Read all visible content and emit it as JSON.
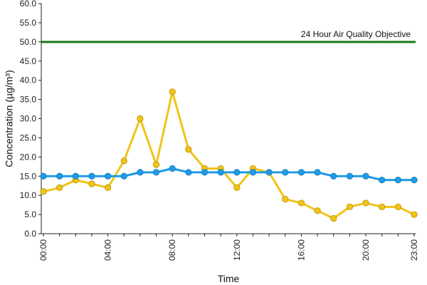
{
  "chart_data": {
    "type": "line",
    "title": "",
    "xlabel": "Time",
    "ylabel": "Concentration (µg/m³)",
    "ylim": [
      0,
      60
    ],
    "ytick_step": 5,
    "ytick_labels": [
      "0.0",
      "5.0",
      "10.0",
      "15.0",
      "20.0",
      "25.0",
      "30.0",
      "35.0",
      "40.0",
      "45.0",
      "50.0",
      "55.0",
      "60.0"
    ],
    "x": [
      "00:00",
      "01:00",
      "02:00",
      "03:00",
      "04:00",
      "05:00",
      "06:00",
      "07:00",
      "08:00",
      "09:00",
      "10:00",
      "11:00",
      "12:00",
      "13:00",
      "14:00",
      "15:00",
      "16:00",
      "17:00",
      "18:00",
      "19:00",
      "20:00",
      "21:00",
      "22:00",
      "23:00"
    ],
    "xtick_labels": [
      "00:00",
      "04:00",
      "08:00",
      "12:00",
      "16:00",
      "20:00",
      "23:00"
    ],
    "grid": false,
    "legend": "none",
    "series": [
      {
        "color": "#f0c419",
        "values": [
          11,
          12,
          14,
          13,
          12,
          19,
          30,
          18,
          37,
          22,
          17,
          17,
          12,
          17,
          16,
          9,
          8,
          6,
          4,
          7,
          8,
          7,
          7,
          5
        ]
      },
      {
        "color": "#1f9be8",
        "values": [
          15,
          15,
          15,
          15,
          15,
          15,
          16,
          16,
          17,
          16,
          16,
          16,
          16,
          16,
          16,
          16,
          16,
          16,
          15,
          15,
          15,
          14,
          14,
          14
        ]
      }
    ],
    "reference_line": {
      "label": "24 Hour Air Quality Objective",
      "value": 50,
      "color": "#1a7a1a"
    }
  }
}
